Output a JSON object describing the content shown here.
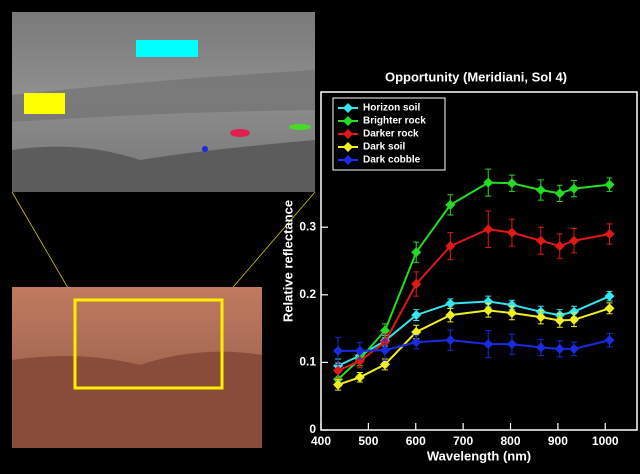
{
  "chart_data": {
    "type": "line",
    "title": "Opportunity (Meridiani, Sol 4)",
    "x_label": "Wavelength (nm)",
    "y_label": "Relative reflectance",
    "x": [
      436,
      482,
      535,
      601,
      673,
      753,
      803,
      864,
      904,
      934,
      1009
    ],
    "xlim": [
      400,
      1067
    ],
    "xticks": [
      400,
      500,
      600,
      700,
      800,
      900,
      1000
    ],
    "ylim": [
      0,
      0.5
    ],
    "yticks": [
      0,
      0.1,
      0.2,
      0.3
    ],
    "legend": "top-left",
    "series": [
      {
        "name": "Horizon soil",
        "color": "#33e6f0",
        "values": [
          0.095,
          0.11,
          0.132,
          0.17,
          0.187,
          0.19,
          0.185,
          0.175,
          0.17,
          0.175,
          0.198
        ],
        "errors": [
          0.01,
          0.008,
          0.008,
          0.008,
          0.007,
          0.008,
          0.007,
          0.008,
          0.008,
          0.008,
          0.007
        ]
      },
      {
        "name": "Brighter rock",
        "color": "#22dd22",
        "values": [
          0.075,
          0.105,
          0.147,
          0.263,
          0.333,
          0.366,
          0.365,
          0.355,
          0.35,
          0.357,
          0.363
        ],
        "errors": [
          0.01,
          0.01,
          0.01,
          0.015,
          0.015,
          0.02,
          0.012,
          0.015,
          0.012,
          0.012,
          0.01
        ]
      },
      {
        "name": "Darker rock",
        "color": "#e01818",
        "values": [
          0.088,
          0.102,
          0.13,
          0.216,
          0.272,
          0.297,
          0.292,
          0.28,
          0.272,
          0.28,
          0.29
        ],
        "errors": [
          0.012,
          0.01,
          0.012,
          0.018,
          0.02,
          0.027,
          0.02,
          0.02,
          0.018,
          0.018,
          0.015
        ]
      },
      {
        "name": "Dark soil",
        "color": "#f0f020",
        "values": [
          0.067,
          0.078,
          0.097,
          0.145,
          0.17,
          0.177,
          0.173,
          0.167,
          0.162,
          0.163,
          0.18
        ],
        "errors": [
          0.008,
          0.007,
          0.008,
          0.01,
          0.01,
          0.01,
          0.01,
          0.01,
          0.01,
          0.01,
          0.008
        ]
      },
      {
        "name": "Dark cobble",
        "color": "#1a2ae0",
        "values": [
          0.117,
          0.117,
          0.118,
          0.13,
          0.133,
          0.127,
          0.127,
          0.122,
          0.12,
          0.12,
          0.133
        ],
        "errors": [
          0.02,
          0.012,
          0.015,
          0.01,
          0.015,
          0.02,
          0.015,
          0.012,
          0.012,
          0.01,
          0.01
        ]
      }
    ]
  }
}
